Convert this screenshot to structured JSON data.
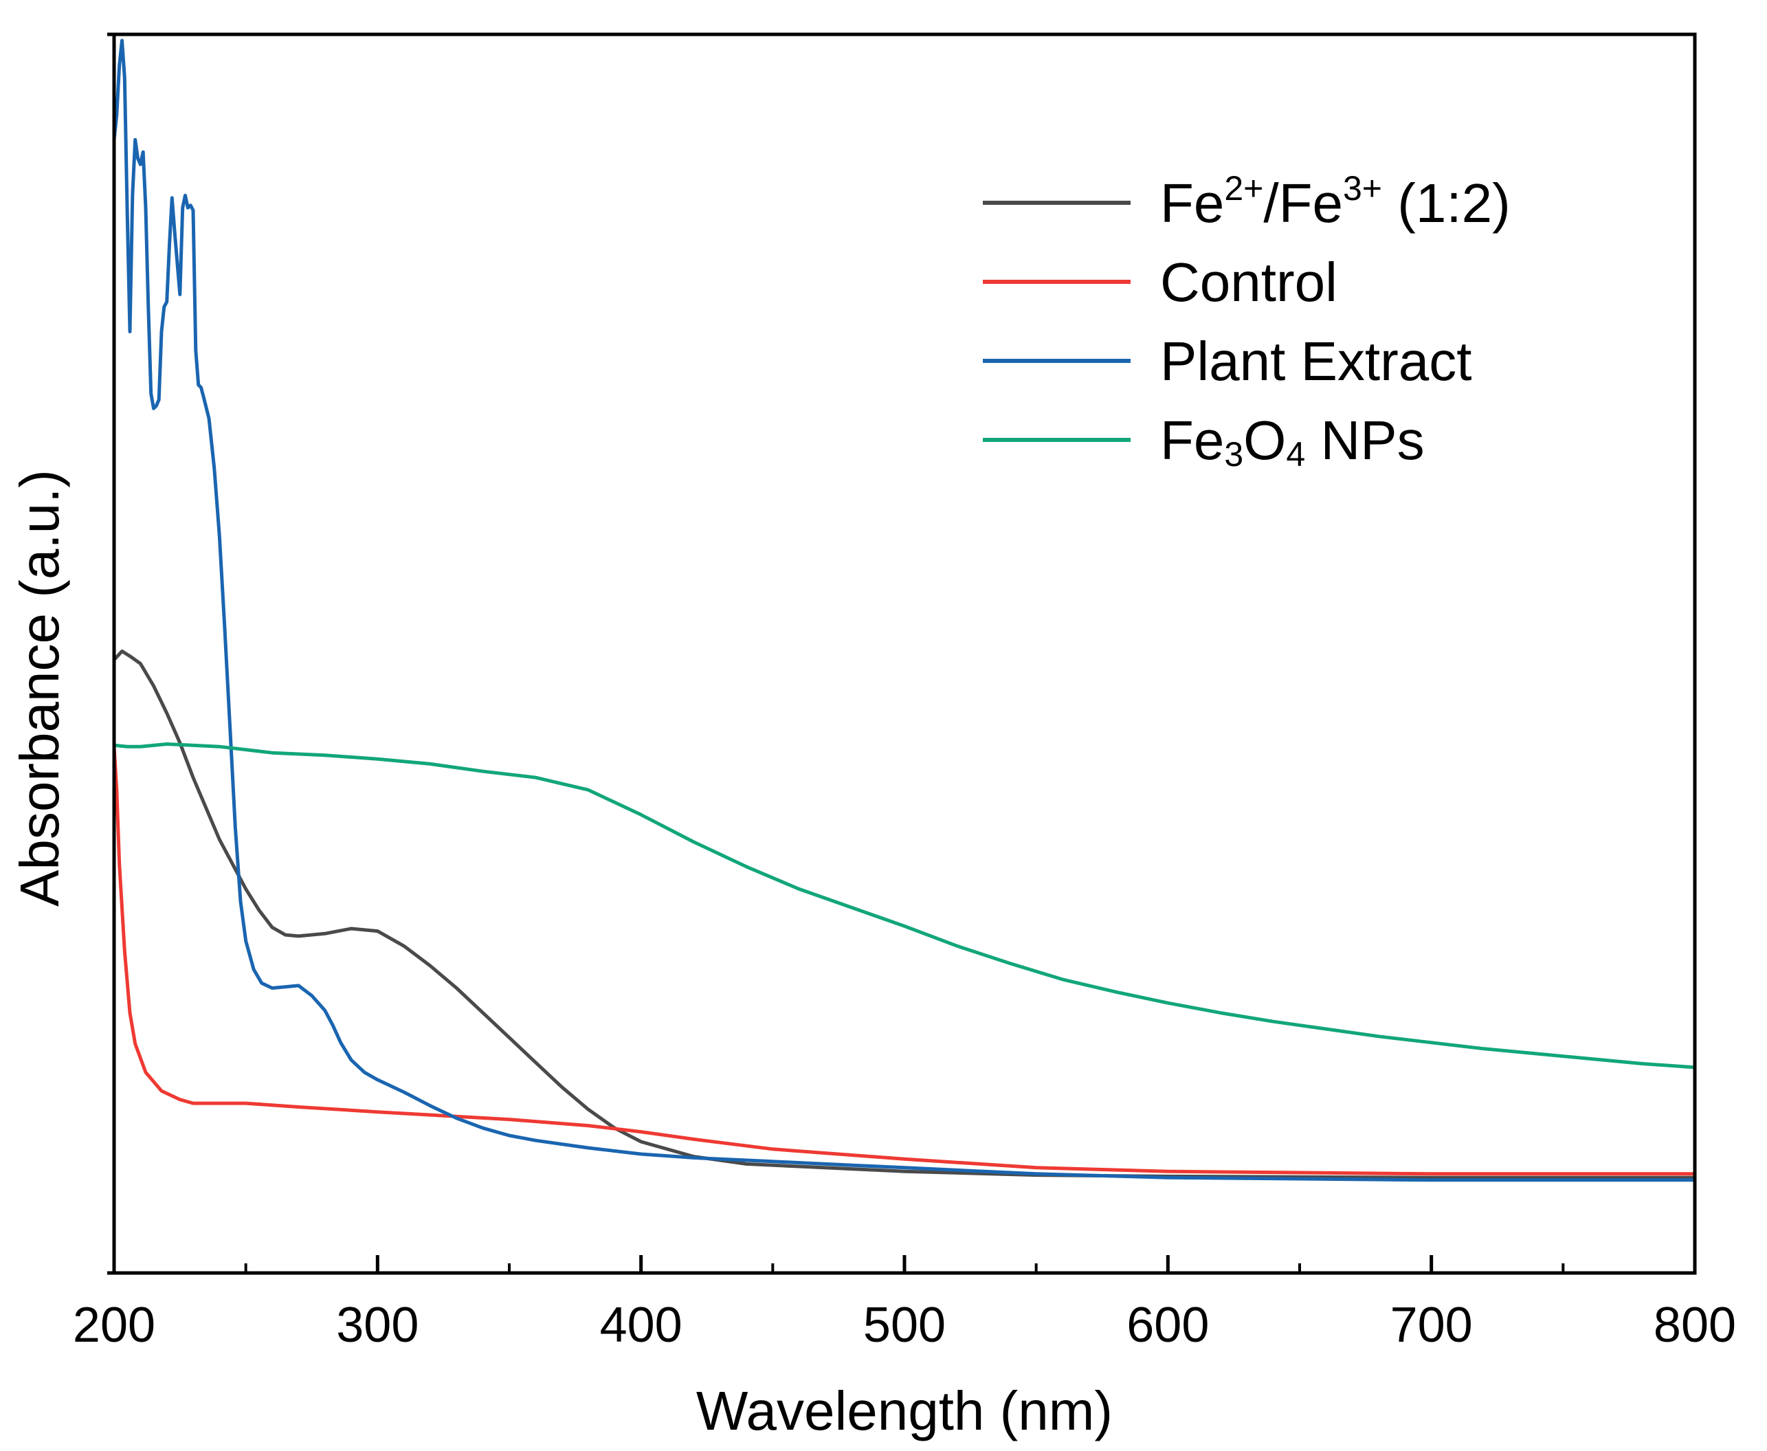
{
  "chart_data": {
    "type": "line",
    "title": "",
    "xlabel": "Wavelength (nm)",
    "ylabel": "Absorbance (a.u.)",
    "xlim": [
      200,
      800
    ],
    "ylim": [
      0,
      1
    ],
    "xticks": [
      200,
      300,
      400,
      500,
      600,
      700,
      800
    ],
    "xtick_labels": [
      "200",
      "300",
      "400",
      "500",
      "600",
      "700",
      "800"
    ],
    "grid": false,
    "legend_position": "top-right",
    "series": [
      {
        "name": "Fe2+/Fe3+ (1:2)",
        "label_parts": [
          {
            "t": "Fe",
            "s": ""
          },
          {
            "t": "2+",
            "s": "sup"
          },
          {
            "t": "/Fe",
            "s": ""
          },
          {
            "t": "3+",
            "s": "sup"
          },
          {
            "t": " (1:2)",
            "s": ""
          }
        ],
        "color": "#4a4a4a",
        "points": [
          [
            200,
            0.495
          ],
          [
            203,
            0.502
          ],
          [
            206,
            0.498
          ],
          [
            210,
            0.492
          ],
          [
            215,
            0.474
          ],
          [
            220,
            0.452
          ],
          [
            225,
            0.428
          ],
          [
            230,
            0.4
          ],
          [
            240,
            0.35
          ],
          [
            250,
            0.31
          ],
          [
            255,
            0.293
          ],
          [
            260,
            0.279
          ],
          [
            265,
            0.273
          ],
          [
            270,
            0.272
          ],
          [
            280,
            0.274
          ],
          [
            290,
            0.278
          ],
          [
            300,
            0.276
          ],
          [
            310,
            0.264
          ],
          [
            320,
            0.248
          ],
          [
            330,
            0.23
          ],
          [
            340,
            0.21
          ],
          [
            350,
            0.19
          ],
          [
            360,
            0.17
          ],
          [
            370,
            0.15
          ],
          [
            380,
            0.132
          ],
          [
            390,
            0.117
          ],
          [
            400,
            0.106
          ],
          [
            420,
            0.094
          ],
          [
            440,
            0.088
          ],
          [
            460,
            0.086
          ],
          [
            500,
            0.082
          ],
          [
            550,
            0.079
          ],
          [
            600,
            0.078
          ],
          [
            700,
            0.077
          ],
          [
            800,
            0.077
          ]
        ]
      },
      {
        "name": "Control",
        "label_parts": [
          {
            "t": "Control",
            "s": ""
          }
        ],
        "color": "#ee3a33",
        "points": [
          [
            200,
            0.425
          ],
          [
            201,
            0.39
          ],
          [
            202,
            0.33
          ],
          [
            204,
            0.26
          ],
          [
            206,
            0.21
          ],
          [
            208,
            0.185
          ],
          [
            212,
            0.162
          ],
          [
            218,
            0.147
          ],
          [
            225,
            0.14
          ],
          [
            230,
            0.137
          ],
          [
            250,
            0.137
          ],
          [
            270,
            0.134
          ],
          [
            300,
            0.13
          ],
          [
            350,
            0.124
          ],
          [
            380,
            0.119
          ],
          [
            400,
            0.114
          ],
          [
            420,
            0.108
          ],
          [
            450,
            0.1
          ],
          [
            500,
            0.092
          ],
          [
            550,
            0.085
          ],
          [
            600,
            0.082
          ],
          [
            700,
            0.08
          ],
          [
            800,
            0.08
          ]
        ]
      },
      {
        "name": "Plant Extract",
        "label_parts": [
          {
            "t": "Plant Extract",
            "s": ""
          }
        ],
        "color": "#1a65b0",
        "points": [
          [
            200,
            0.915
          ],
          [
            201,
            0.935
          ],
          [
            202,
            0.975
          ],
          [
            203,
            0.995
          ],
          [
            204,
            0.965
          ],
          [
            205,
            0.855
          ],
          [
            206,
            0.76
          ],
          [
            207,
            0.87
          ],
          [
            208,
            0.915
          ],
          [
            209,
            0.9
          ],
          [
            210,
            0.895
          ],
          [
            211,
            0.905
          ],
          [
            212,
            0.86
          ],
          [
            213,
            0.78
          ],
          [
            214,
            0.71
          ],
          [
            215,
            0.698
          ],
          [
            216,
            0.7
          ],
          [
            217,
            0.705
          ],
          [
            218,
            0.76
          ],
          [
            219,
            0.78
          ],
          [
            220,
            0.784
          ],
          [
            221,
            0.83
          ],
          [
            222,
            0.868
          ],
          [
            223,
            0.84
          ],
          [
            224,
            0.815
          ],
          [
            225,
            0.79
          ],
          [
            226,
            0.86
          ],
          [
            227,
            0.87
          ],
          [
            228,
            0.86
          ],
          [
            229,
            0.862
          ],
          [
            230,
            0.858
          ],
          [
            231,
            0.745
          ],
          [
            232,
            0.717
          ],
          [
            233,
            0.715
          ],
          [
            234,
            0.707
          ],
          [
            236,
            0.69
          ],
          [
            238,
            0.65
          ],
          [
            240,
            0.595
          ],
          [
            242,
            0.52
          ],
          [
            244,
            0.44
          ],
          [
            246,
            0.36
          ],
          [
            248,
            0.3
          ],
          [
            250,
            0.268
          ],
          [
            253,
            0.245
          ],
          [
            256,
            0.234
          ],
          [
            260,
            0.23
          ],
          [
            265,
            0.231
          ],
          [
            270,
            0.232
          ],
          [
            275,
            0.224
          ],
          [
            280,
            0.212
          ],
          [
            283,
            0.2
          ],
          [
            286,
            0.186
          ],
          [
            290,
            0.172
          ],
          [
            295,
            0.162
          ],
          [
            300,
            0.156
          ],
          [
            310,
            0.146
          ],
          [
            320,
            0.135
          ],
          [
            330,
            0.125
          ],
          [
            340,
            0.117
          ],
          [
            350,
            0.111
          ],
          [
            360,
            0.107
          ],
          [
            380,
            0.101
          ],
          [
            400,
            0.096
          ],
          [
            420,
            0.093
          ],
          [
            450,
            0.09
          ],
          [
            480,
            0.087
          ],
          [
            500,
            0.085
          ],
          [
            550,
            0.08
          ],
          [
            600,
            0.077
          ],
          [
            700,
            0.075
          ],
          [
            800,
            0.075
          ]
        ]
      },
      {
        "name": "Fe3O4 NPs",
        "label_parts": [
          {
            "t": "Fe",
            "s": ""
          },
          {
            "t": "3",
            "s": "sub"
          },
          {
            "t": "O",
            "s": ""
          },
          {
            "t": "4",
            "s": "sub"
          },
          {
            "t": " NPs",
            "s": ""
          }
        ],
        "color": "#12a67a",
        "points": [
          [
            200,
            0.426
          ],
          [
            205,
            0.425
          ],
          [
            210,
            0.425
          ],
          [
            220,
            0.427
          ],
          [
            240,
            0.425
          ],
          [
            260,
            0.42
          ],
          [
            280,
            0.418
          ],
          [
            300,
            0.415
          ],
          [
            320,
            0.411
          ],
          [
            340,
            0.405
          ],
          [
            360,
            0.4
          ],
          [
            380,
            0.39
          ],
          [
            400,
            0.37
          ],
          [
            420,
            0.348
          ],
          [
            440,
            0.328
          ],
          [
            460,
            0.31
          ],
          [
            480,
            0.295
          ],
          [
            500,
            0.28
          ],
          [
            520,
            0.264
          ],
          [
            540,
            0.25
          ],
          [
            560,
            0.237
          ],
          [
            580,
            0.227
          ],
          [
            600,
            0.218
          ],
          [
            620,
            0.21
          ],
          [
            640,
            0.203
          ],
          [
            660,
            0.197
          ],
          [
            680,
            0.191
          ],
          [
            700,
            0.186
          ],
          [
            720,
            0.181
          ],
          [
            740,
            0.177
          ],
          [
            760,
            0.173
          ],
          [
            780,
            0.169
          ],
          [
            800,
            0.166
          ]
        ]
      }
    ]
  }
}
